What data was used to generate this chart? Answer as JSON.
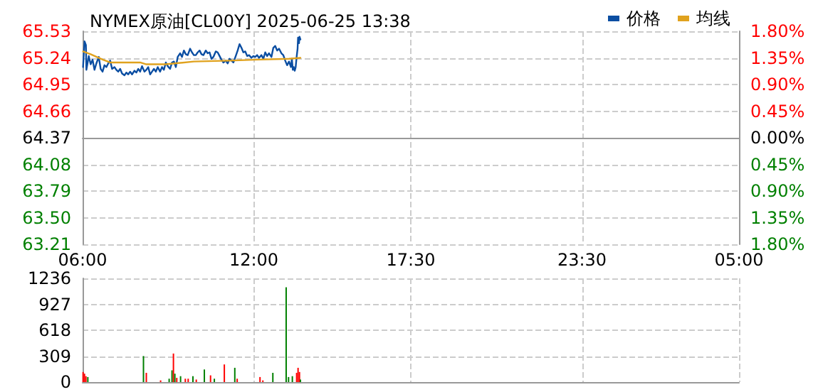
{
  "chart_data": [
    {
      "type": "line",
      "title": "NYMEX原油[CL00Y] 2025-06-25 13:38",
      "legend": "top right",
      "grid": true,
      "marker": "none",
      "line_style": "solid",
      "xlim": [
        "2025-06-25T06:00",
        "2025-06-26T05:00"
      ],
      "xticks": [
        {
          "value": "2025-06-25T06:00",
          "label": "06:00"
        },
        {
          "value": "2025-06-25T12:00",
          "label": "12:00"
        },
        {
          "value": "2025-06-25T17:30",
          "label": "17:30"
        },
        {
          "value": "2025-06-25T23:30",
          "label": "23:30"
        },
        {
          "value": "2025-06-26T05:00",
          "label": "05:00"
        }
      ],
      "ylim": [
        63.21,
        65.53
      ],
      "yticks": [
        63.21,
        {
          "value": 63.5,
          "label": "63.50"
        },
        63.79,
        64.08,
        64.37,
        64.66,
        64.95,
        65.24,
        65.53
      ],
      "y2lim": [
        -1.8,
        1.8
      ],
      "y2ticks": [
        {
          "value": -1.8,
          "label": "1.80%"
        },
        {
          "value": -1.35,
          "label": "1.35%"
        },
        {
          "value": -0.9,
          "label": "0.90%"
        },
        {
          "value": -0.45,
          "label": "0.45%"
        },
        {
          "value": 0,
          "label": "0.00%"
        },
        {
          "value": 0.45,
          "label": "0.45%"
        },
        {
          "value": 0.9,
          "label": "0.90%"
        },
        {
          "value": 1.35,
          "label": "1.35%"
        },
        {
          "value": 1.8,
          "label": "1.80%"
        }
      ],
      "series": [
        {
          "name": "价格",
          "color": "#0b4ea2",
          "x": [
            "2025-06-25T06:01",
            "2025-06-25T06:04",
            "2025-06-25T06:07",
            "2025-06-25T06:08",
            "2025-06-25T06:13",
            "2025-06-25T06:17",
            "2025-06-25T06:21",
            "2025-06-25T06:25",
            "2025-06-25T06:29",
            "2025-06-25T06:34",
            "2025-06-25T06:38",
            "2025-06-25T06:42",
            "2025-06-25T06:46",
            "2025-06-25T06:50",
            "2025-06-25T06:54",
            "2025-06-25T06:58",
            "2025-06-25T07:02",
            "2025-06-25T07:07",
            "2025-06-25T07:11",
            "2025-06-25T07:15",
            "2025-06-25T07:19",
            "2025-06-25T07:23",
            "2025-06-25T07:28",
            "2025-06-25T07:32",
            "2025-06-25T07:36",
            "2025-06-25T07:40",
            "2025-06-25T07:44",
            "2025-06-25T07:49",
            "2025-06-25T07:53",
            "2025-06-25T07:57",
            "2025-06-25T08:01",
            "2025-06-25T08:05",
            "2025-06-25T08:10",
            "2025-06-25T08:14",
            "2025-06-25T08:18",
            "2025-06-25T08:22",
            "2025-06-25T08:26",
            "2025-06-25T08:30",
            "2025-06-25T08:34",
            "2025-06-25T08:38",
            "2025-06-25T08:43",
            "2025-06-25T08:47",
            "2025-06-25T08:51",
            "2025-06-25T08:55",
            "2025-06-25T08:59",
            "2025-06-25T09:04",
            "2025-06-25T09:08",
            "2025-06-25T09:12",
            "2025-06-25T09:16",
            "2025-06-25T09:20",
            "2025-06-25T09:25",
            "2025-06-25T09:29",
            "2025-06-25T09:33",
            "2025-06-25T09:37",
            "2025-06-25T09:41",
            "2025-06-25T09:46",
            "2025-06-25T09:50",
            "2025-06-25T09:54",
            "2025-06-25T09:58",
            "2025-06-25T10:02",
            "2025-06-25T10:06",
            "2025-06-25T10:10",
            "2025-06-25T10:14",
            "2025-06-25T10:19",
            "2025-06-25T10:23",
            "2025-06-25T10:27",
            "2025-06-25T10:31",
            "2025-06-25T10:35",
            "2025-06-25T10:40",
            "2025-06-25T10:44",
            "2025-06-25T10:48",
            "2025-06-25T10:52",
            "2025-06-25T10:56",
            "2025-06-25T11:01",
            "2025-06-25T11:05",
            "2025-06-25T11:09",
            "2025-06-25T11:13",
            "2025-06-25T11:17",
            "2025-06-25T11:22",
            "2025-06-25T11:26",
            "2025-06-25T11:30",
            "2025-06-25T11:34",
            "2025-06-25T11:38",
            "2025-06-25T11:42",
            "2025-06-25T11:46",
            "2025-06-25T11:50",
            "2025-06-25T11:55",
            "2025-06-25T11:59",
            "2025-06-25T12:03",
            "2025-06-25T12:07",
            "2025-06-25T12:11",
            "2025-06-25T12:16",
            "2025-06-25T12:20",
            "2025-06-25T12:24",
            "2025-06-25T12:28",
            "2025-06-25T12:32",
            "2025-06-25T12:37",
            "2025-06-25T12:41",
            "2025-06-25T12:45",
            "2025-06-25T12:49",
            "2025-06-25T12:53",
            "2025-06-25T12:58",
            "2025-06-25T13:02",
            "2025-06-25T13:06",
            "2025-06-25T13:10",
            "2025-06-25T13:14",
            "2025-06-25T13:18",
            "2025-06-25T13:20",
            "2025-06-25T13:22",
            "2025-06-25T13:24",
            "2025-06-25T13:26",
            "2025-06-25T13:28",
            "2025-06-25T13:30",
            "2025-06-25T13:32",
            "2025-06-25T13:33",
            "2025-06-25T13:35",
            "2025-06-25T13:36",
            "2025-06-25T13:38"
          ],
          "values": [
            65.14,
            65.42,
            65.38,
            65.11,
            65.26,
            65.17,
            65.22,
            65.11,
            65.18,
            65.25,
            65.12,
            65.09,
            65.16,
            65.14,
            65.18,
            65.21,
            65.12,
            65.14,
            65.11,
            65.09,
            65.12,
            65.07,
            65.05,
            65.08,
            65.06,
            65.09,
            65.06,
            65.1,
            65.08,
            65.12,
            65.09,
            65.15,
            65.09,
            65.11,
            65.14,
            65.06,
            65.09,
            65.12,
            65.09,
            65.14,
            65.09,
            65.14,
            65.11,
            65.19,
            65.15,
            65.12,
            65.19,
            65.2,
            65.14,
            65.25,
            65.29,
            65.25,
            65.32,
            65.28,
            65.27,
            65.34,
            65.3,
            65.27,
            65.27,
            65.3,
            65.32,
            65.28,
            65.27,
            65.32,
            65.29,
            65.3,
            65.23,
            65.25,
            65.31,
            65.3,
            65.26,
            65.22,
            65.19,
            65.21,
            65.18,
            65.23,
            65.21,
            65.19,
            65.26,
            65.32,
            65.39,
            65.35,
            65.3,
            65.31,
            65.26,
            65.27,
            65.24,
            65.26,
            65.25,
            65.27,
            65.24,
            65.27,
            65.23,
            65.3,
            65.26,
            65.29,
            65.25,
            65.35,
            65.37,
            65.32,
            65.34,
            65.29,
            65.27,
            65.21,
            65.16,
            65.2,
            65.14,
            65.23,
            65.11,
            65.14,
            65.1,
            65.14,
            65.25,
            65.34,
            65.46,
            65.4,
            65.47,
            65.44
          ]
        },
        {
          "name": "均线",
          "color": "#e0a21e",
          "x": [
            "2025-06-25T06:01",
            "2025-06-25T06:17",
            "2025-06-25T06:43",
            "2025-06-25T06:58",
            "2025-06-25T08:01",
            "2025-06-25T08:14",
            "2025-06-25T08:55",
            "2025-06-25T09:54",
            "2025-06-25T11:09",
            "2025-06-25T12:01",
            "2025-06-25T13:14",
            "2025-06-25T13:38"
          ],
          "values": [
            65.31,
            65.28,
            65.22,
            65.19,
            65.19,
            65.17,
            65.17,
            65.2,
            65.21,
            65.22,
            65.23,
            65.24
          ]
        }
      ]
    },
    {
      "type": "bar",
      "tick_labels": "y",
      "grid": true,
      "xlim": [
        "2025-06-25T06:00",
        "2025-06-26T05:00"
      ],
      "xticks": [
        {
          "value": "2025-06-25T06:00",
          "label": null
        },
        {
          "value": "2025-06-25T12:00",
          "label": null
        },
        {
          "value": "2025-06-25T17:30",
          "label": null
        },
        {
          "value": "2025-06-25T23:30",
          "label": null
        },
        {
          "value": "2025-06-26T05:00",
          "label": null
        }
      ],
      "ylim": [
        0,
        1236
      ],
      "yticks": [
        0,
        309,
        618,
        927,
        1236
      ],
      "x": [
        "2025-06-25T06:01",
        "2025-06-25T06:04",
        "2025-06-25T06:07",
        "2025-06-25T06:11",
        "2025-06-25T08:08",
        "2025-06-25T08:14",
        "2025-06-25T08:44",
        "2025-06-25T09:02",
        "2025-06-25T09:08",
        "2025-06-25T09:11",
        "2025-06-25T09:14",
        "2025-06-25T09:18",
        "2025-06-25T09:26",
        "2025-06-25T09:36",
        "2025-06-25T09:42",
        "2025-06-25T09:52",
        "2025-06-25T09:59",
        "2025-06-25T10:16",
        "2025-06-25T10:29",
        "2025-06-25T10:37",
        "2025-06-25T10:58",
        "2025-06-25T11:20",
        "2025-06-25T11:25",
        "2025-06-25T12:13",
        "2025-06-25T12:19",
        "2025-06-25T12:40",
        "2025-06-25T13:08",
        "2025-06-25T13:13",
        "2025-06-25T13:21",
        "2025-06-25T13:30",
        "2025-06-25T13:33",
        "2025-06-25T13:36",
        "2025-06-25T13:38"
      ],
      "values": [
        120,
        100,
        70,
        60,
        310,
        110,
        20,
        40,
        140,
        340,
        100,
        50,
        70,
        40,
        40,
        70,
        30,
        150,
        80,
        40,
        210,
        170,
        40,
        60,
        20,
        110,
        1130,
        60,
        70,
        110,
        170,
        120,
        30
      ],
      "colors": [
        "#ff0000",
        "#ff0000",
        "#ff0000",
        "#008000",
        "#008000",
        "#ff0000",
        "#ff0000",
        "#008000",
        "#008000",
        "#ff0000",
        "#008000",
        "#ff0000",
        "#008000",
        "#ff0000",
        "#ff0000",
        "#008000",
        "#ff0000",
        "#008000",
        "#ff0000",
        "#008000",
        "#ff0000",
        "#008000",
        "#ff0000",
        "#ff0000",
        "#ff0000",
        "#008000",
        "#008000",
        "#008000",
        "#008000",
        "#ff0000",
        "#ff0000",
        "#ff0000",
        "#008000"
      ]
    }
  ]
}
